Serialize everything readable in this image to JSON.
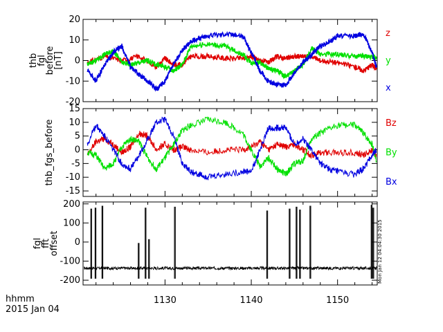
{
  "chart_data": [
    {
      "type": "line",
      "ylabel_lines": [
        "thb",
        "fgl",
        "before",
        "[nT]"
      ],
      "ylim": [
        -20,
        20
      ],
      "yticks": [
        "20",
        "10",
        "0",
        "-10",
        "-20"
      ],
      "ytick_values": [
        20,
        10,
        0,
        -10,
        -20
      ],
      "series": [
        {
          "name": "z",
          "color": "#e00000",
          "x": [
            1121,
            1123,
            1125,
            1127,
            1129,
            1130,
            1131,
            1132,
            1133,
            1135,
            1137,
            1139,
            1140,
            1141,
            1142,
            1143,
            1144,
            1145,
            1146,
            1147,
            1148,
            1150,
            1152,
            1153,
            1154,
            1154.5
          ],
          "values": [
            -1,
            2,
            0,
            2,
            -3,
            1,
            -2,
            -2,
            2,
            2,
            1,
            1,
            2,
            0,
            -1,
            2,
            1,
            2,
            2,
            2,
            0,
            -1,
            -3,
            -5,
            -2,
            -4
          ]
        },
        {
          "name": "y",
          "color": "#00e000",
          "x": [
            1121,
            1122,
            1123,
            1124,
            1125,
            1126,
            1127,
            1128,
            1129,
            1130,
            1131,
            1132,
            1133,
            1135,
            1137,
            1139,
            1140,
            1141,
            1142,
            1143,
            1144,
            1145,
            1146,
            1147,
            1148,
            1150,
            1152,
            1153,
            1154,
            1154.5
          ],
          "values": [
            -2,
            0,
            3,
            5,
            -1,
            -2,
            -1,
            0,
            -2,
            -3,
            -5,
            -2,
            7,
            8,
            7,
            3,
            -1,
            -1,
            -4,
            -5,
            -8,
            -5,
            -2,
            6,
            3,
            3,
            2,
            2,
            2,
            1
          ]
        },
        {
          "name": "x",
          "color": "#0000e0",
          "x": [
            1121,
            1122,
            1123,
            1124,
            1125,
            1126,
            1127,
            1128,
            1129,
            1130,
            1131,
            1132,
            1133,
            1134,
            1135,
            1137,
            1139,
            1140,
            1141,
            1142,
            1143,
            1144,
            1145,
            1146,
            1147,
            1148,
            1149,
            1150,
            1152,
            1153,
            1154,
            1154.5
          ],
          "values": [
            -5,
            -10,
            -2,
            4,
            7,
            -3,
            -7,
            -10,
            -14,
            -10,
            -2,
            5,
            9,
            11,
            12,
            13,
            12,
            4,
            -5,
            -10,
            -12,
            -12,
            -6,
            -1,
            3,
            7,
            9,
            12,
            12,
            13,
            4,
            -3
          ]
        }
      ]
    },
    {
      "type": "line",
      "ylabel": "thb_fgs_before",
      "ylim": [
        -17,
        15
      ],
      "yticks": [
        "15",
        "10",
        "5",
        "0",
        "-5",
        "-10",
        "-15"
      ],
      "ytick_values": [
        15,
        10,
        5,
        0,
        -5,
        -10,
        -15
      ],
      "series": [
        {
          "name": "Bz",
          "color": "#e00000",
          "x": [
            1121,
            1122,
            1123,
            1124,
            1125,
            1126,
            1127,
            1128,
            1129,
            1130,
            1131,
            1132,
            1133,
            1135,
            1137,
            1139,
            1140,
            1141,
            1142,
            1143,
            1144,
            1145,
            1146,
            1147,
            1148,
            1150,
            1152,
            1153,
            1154,
            1154.5
          ],
          "values": [
            -2,
            3,
            4,
            2,
            -1,
            1,
            6,
            5,
            0,
            2,
            0,
            1,
            0,
            -1,
            0,
            0,
            1,
            3,
            0,
            2,
            1,
            2,
            0,
            -2,
            -1,
            -1,
            -1,
            -2,
            0,
            -2
          ]
        },
        {
          "name": "By",
          "color": "#00e000",
          "x": [
            1121,
            1122,
            1123,
            1124,
            1125,
            1126,
            1127,
            1128,
            1129,
            1130,
            1131,
            1132,
            1133,
            1135,
            1137,
            1139,
            1140,
            1141,
            1142,
            1143,
            1144,
            1145,
            1146,
            1147,
            1148,
            1150,
            1152,
            1153,
            1154,
            1154.5
          ],
          "values": [
            -1,
            -2,
            -7,
            -5,
            1,
            4,
            3,
            -3,
            -7,
            -3,
            2,
            7,
            9,
            11,
            10,
            6,
            0,
            -6,
            -3,
            -7,
            -9,
            -5,
            -4,
            4,
            6,
            9,
            9,
            6,
            2,
            -4
          ]
        },
        {
          "name": "Bx",
          "color": "#0000e0",
          "x": [
            1121,
            1122,
            1123,
            1124,
            1125,
            1126,
            1127,
            1128,
            1129,
            1130,
            1131,
            1132,
            1133,
            1134,
            1135,
            1137,
            1139,
            1140,
            1141,
            1142,
            1143,
            1144,
            1145,
            1146,
            1147,
            1148,
            1149,
            1150,
            1152,
            1153,
            1154,
            1154.5
          ],
          "values": [
            2,
            9,
            5,
            0,
            -5,
            -7,
            -2,
            4,
            10,
            11,
            5,
            -5,
            -8,
            -9,
            -10,
            -9,
            -8,
            -8,
            0,
            8,
            8,
            8,
            2,
            4,
            0,
            -5,
            -7,
            -8,
            -9,
            -7,
            -2,
            0
          ]
        }
      ]
    },
    {
      "type": "line",
      "ylabel_lines": [
        "fgl",
        "fft",
        "offset"
      ],
      "ylim": [
        -225,
        210
      ],
      "yticks": [
        "200",
        "100",
        "0",
        "-100",
        "-200"
      ],
      "ytick_values": [
        200,
        100,
        0,
        -100,
        -200
      ],
      "baseline": -137,
      "noise": 8,
      "spikes": [
        {
          "x": 1121.4,
          "peak": 175
        },
        {
          "x": 1121.9,
          "peak": 180
        },
        {
          "x": 1122.7,
          "peak": 190
        },
        {
          "x": 1126.9,
          "peak": -5
        },
        {
          "x": 1127.7,
          "peak": 180
        },
        {
          "x": 1128.1,
          "peak": 15
        },
        {
          "x": 1131.1,
          "peak": 185
        },
        {
          "x": 1141.8,
          "peak": 165
        },
        {
          "x": 1144.4,
          "peak": 175
        },
        {
          "x": 1145.2,
          "peak": 185
        },
        {
          "x": 1145.6,
          "peak": 170
        },
        {
          "x": 1146.8,
          "peak": 190
        },
        {
          "x": 1153.9,
          "peak": 195
        },
        {
          "x": 1154.1,
          "peak": 180
        }
      ],
      "series": [
        {
          "name": "",
          "color": "#000000"
        }
      ]
    }
  ],
  "xaxis": {
    "range": [
      1120.5,
      1154.6
    ],
    "ticks": [
      1130,
      1140,
      1150
    ],
    "tick_labels": [
      "1130",
      "1140",
      "1150"
    ],
    "minor_step": 2
  },
  "footer": {
    "format_label": "hhmm",
    "date_label": "2015 Jan 04"
  },
  "timestamp_text": "Mon Jan 12 04:04:30 2015"
}
